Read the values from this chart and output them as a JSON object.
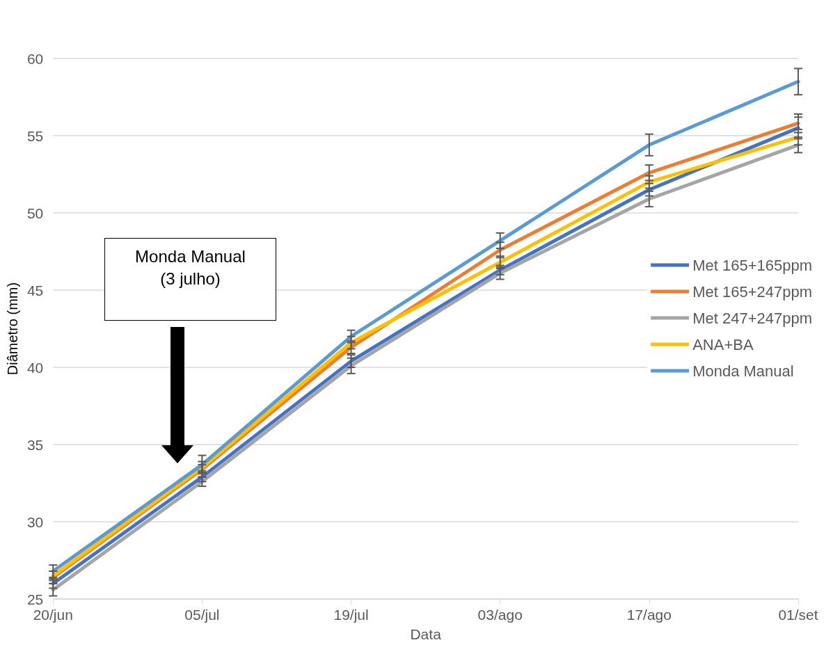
{
  "chart_data": {
    "type": "line",
    "xlabel": "Data",
    "ylabel": "Diâmetro (mm)",
    "categories": [
      "20/jun",
      "05/jul",
      "19/jul",
      "03/ago",
      "17/ago",
      "01/set"
    ],
    "series": [
      {
        "name": "Met 165+165ppm",
        "color": "#4472c4",
        "values": [
          26.0,
          32.9,
          40.4,
          46.3,
          51.5,
          55.5
        ],
        "errors": [
          0.3,
          0.3,
          0.4,
          0.3,
          0.4,
          0.7
        ]
      },
      {
        "name": "Met 165+247ppm",
        "color": "#ed7d31",
        "values": [
          26.4,
          33.4,
          41.3,
          47.6,
          52.6,
          55.8
        ],
        "errors": [
          0.4,
          0.5,
          0.4,
          0.5,
          0.5,
          0.6
        ]
      },
      {
        "name": "Met 247+247ppm",
        "color": "#a5a5a5",
        "values": [
          25.6,
          32.6,
          40.1,
          46.1,
          50.9,
          54.4
        ],
        "errors": [
          0.4,
          0.3,
          0.5,
          0.4,
          0.5,
          0.5
        ]
      },
      {
        "name": "ANA+BA",
        "color": "#ffc000",
        "values": [
          26.5,
          33.5,
          41.6,
          46.8,
          52.0,
          54.9
        ],
        "errors": [
          0.3,
          0.2,
          0.4,
          0.4,
          0.4,
          0.5
        ]
      },
      {
        "name": "Monda Manual",
        "color": "#5b9bd5",
        "values": [
          26.8,
          33.7,
          42.0,
          48.2,
          54.4,
          58.5
        ],
        "errors": [
          0.4,
          0.6,
          0.4,
          0.5,
          0.7,
          0.85
        ]
      }
    ],
    "ylim": [
      25,
      60
    ],
    "yticks": [
      25,
      30,
      35,
      40,
      45,
      50,
      55,
      60
    ],
    "grid": "y",
    "legend": "right",
    "marker": "none",
    "line_style": "solid",
    "annotations": [
      "Monda Manual\n(3 julho)"
    ]
  }
}
